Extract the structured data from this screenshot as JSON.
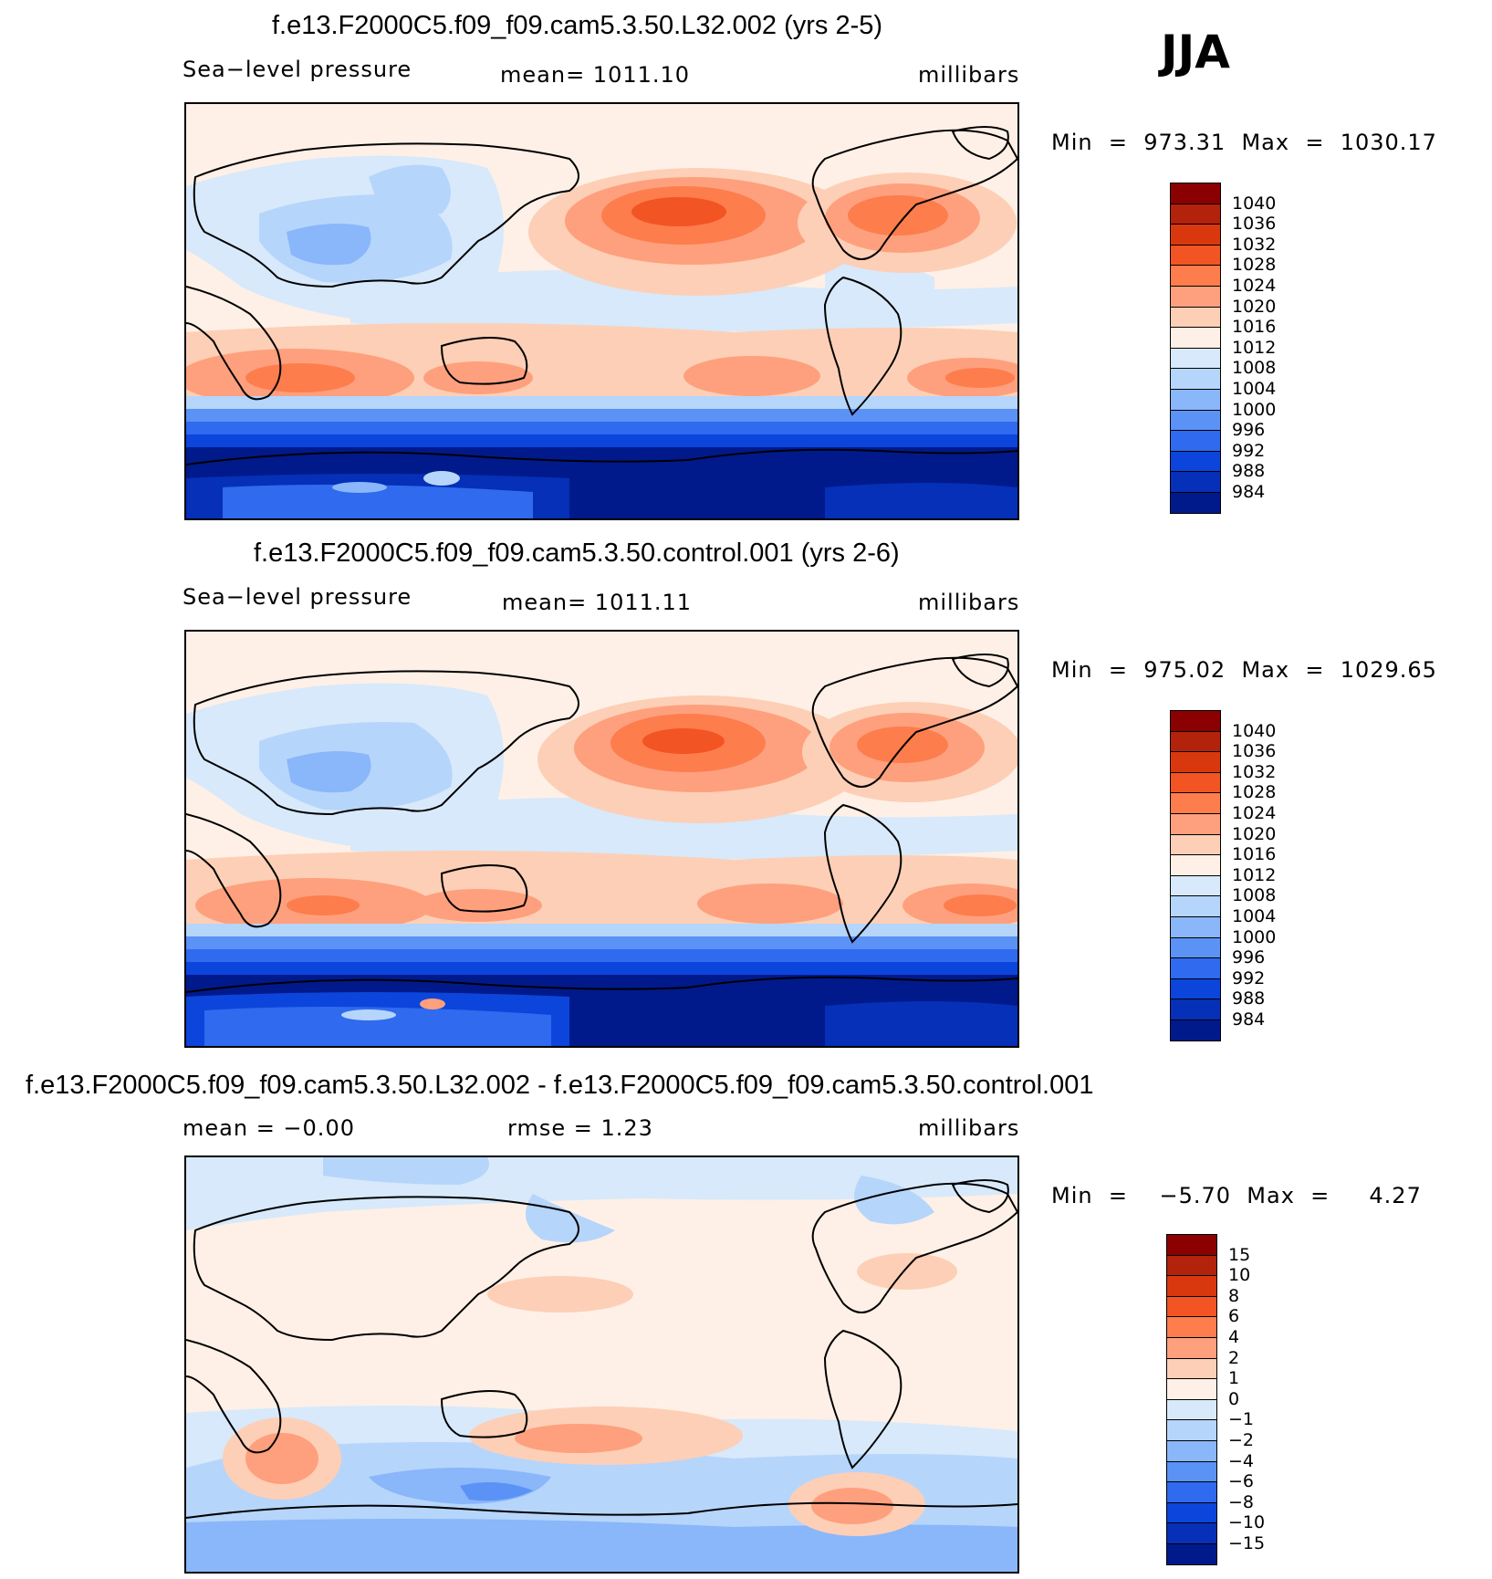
{
  "season": "JJA",
  "panels": [
    {
      "title": "f.e13.F2000C5.f09_f09.cam5.3.50.L32.002 (yrs 2-5)",
      "left_label": "Sea−level pressure",
      "center_label": "mean=  1011.10",
      "right_label": "millibars",
      "minmax": "Min  =  973.31  Max  =  1030.17",
      "colorbar": {
        "labels": [
          "1040",
          "1036",
          "1032",
          "1028",
          "1024",
          "1020",
          "1016",
          "1012",
          "1008",
          "1004",
          "1000",
          "996",
          "992",
          "988",
          "984"
        ],
        "colors": [
          "#8b0000",
          "#b3220a",
          "#d9380f",
          "#f35423",
          "#fd7d4d",
          "#fea07d",
          "#fdcfb6",
          "#fef0e6",
          "#d7e9fb",
          "#b6d5fb",
          "#8ab6fa",
          "#5b92f5",
          "#2f6aef",
          "#0c45dc",
          "#0530b7",
          "#001a8c"
        ]
      }
    },
    {
      "title": "f.e13.F2000C5.f09_f09.cam5.3.50.control.001 (yrs 2-6)",
      "left_label": "Sea−level pressure",
      "center_label": "mean=  1011.11",
      "right_label": "millibars",
      "minmax": "Min  =  975.02  Max  =  1029.65",
      "colorbar": {
        "labels": [
          "1040",
          "1036",
          "1032",
          "1028",
          "1024",
          "1020",
          "1016",
          "1012",
          "1008",
          "1004",
          "1000",
          "996",
          "992",
          "988",
          "984"
        ],
        "colors": [
          "#8b0000",
          "#b3220a",
          "#d9380f",
          "#f35423",
          "#fd7d4d",
          "#fea07d",
          "#fdcfb6",
          "#fef0e6",
          "#d7e9fb",
          "#b6d5fb",
          "#8ab6fa",
          "#5b92f5",
          "#2f6aef",
          "#0c45dc",
          "#0530b7",
          "#001a8c"
        ]
      }
    },
    {
      "title": "f.e13.F2000C5.f09_f09.cam5.3.50.L32.002 - f.e13.F2000C5.f09_f09.cam5.3.50.control.001",
      "left_label": "mean  =   −0.00",
      "center_label": "rmse  =     1.23",
      "right_label": "millibars",
      "minmax": "Min  =    −5.70  Max  =     4.27",
      "colorbar": {
        "labels": [
          "15",
          "10",
          "8",
          "6",
          "4",
          "2",
          "1",
          "0",
          "−1",
          "−2",
          "−4",
          "−6",
          "−8",
          "−10",
          "−15"
        ],
        "colors": [
          "#8b0000",
          "#b3220a",
          "#d9380f",
          "#f35423",
          "#fd7d4d",
          "#fea07d",
          "#fdcfb6",
          "#fef0e6",
          "#d7e9fb",
          "#b6d5fb",
          "#8ab6fa",
          "#5b92f5",
          "#2f6aef",
          "#0c45dc",
          "#0530b7",
          "#001a8c"
        ]
      }
    }
  ]
}
